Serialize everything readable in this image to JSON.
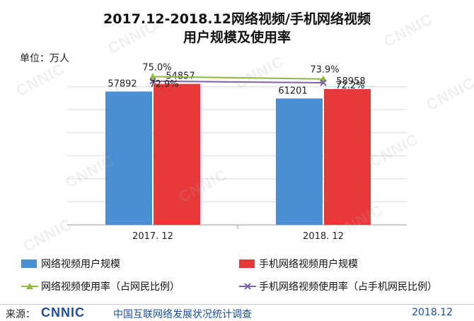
{
  "title_line1": "2017.12-2018.12网络视频/手机网络视频",
  "title_line2": "用户规模及使用率",
  "unit_label": "单位：万人",
  "watermark": "CNNIC",
  "chart_data": {
    "type": "bar",
    "categories": [
      "2017. 12",
      "2018. 12"
    ],
    "series": [
      {
        "name": "网络视频用户规模",
        "values": [
          57892,
          54857
        ],
        "color": "#4a8fd3"
      },
      {
        "name": "手机网络视频用户规模",
        "values": [
          61201,
          58958
        ],
        "color": "#e8393a"
      }
    ],
    "line_series": [
      {
        "name": "网络视频使用率（占网民比例）",
        "values": [
          75.0,
          73.9
        ],
        "labels": [
          "75.0%",
          "73.9%"
        ],
        "color": "#8dbb3f",
        "marker": "triangle"
      },
      {
        "name": "手机网络视频使用率（占手机网民比例）",
        "values": [
          72.9,
          72.2
        ],
        "labels": [
          "72.9%",
          "72.2%"
        ],
        "color": "#7d62a8",
        "marker": "x"
      }
    ],
    "bar_labels": [
      [
        "57892",
        "54857"
      ],
      [
        "61201",
        "58958"
      ]
    ],
    "ylim": [
      0,
      70000
    ],
    "grid": true,
    "legend_position": "bottom"
  },
  "legend": [
    {
      "label": "网络视频用户规模",
      "color": "#4a8fd3",
      "kind": "bar"
    },
    {
      "label": "手机网络视频用户规模",
      "color": "#e8393a",
      "kind": "bar"
    },
    {
      "label": "网络视频使用率（占网民比例）",
      "color": "#8dbb3f",
      "kind": "line-triangle"
    },
    {
      "label": "手机网络视频使用率（占手机网民比例）",
      "color": "#7d62a8",
      "kind": "line-x"
    }
  ],
  "footer": {
    "source_label": "来源：",
    "logo_text": "CNNIC",
    "org_name": "中国互联网络发展状况统计调查",
    "date": "2018.12"
  }
}
